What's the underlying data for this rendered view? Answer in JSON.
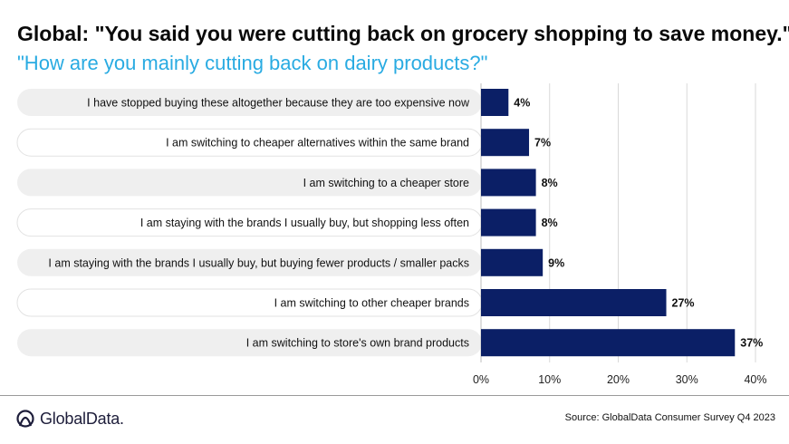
{
  "header": {
    "title": "Global: \"You said you were cutting back on grocery shopping to save money.\"",
    "subtitle": "\"How are you mainly cutting back on dairy products?\""
  },
  "footer": {
    "brand": "GlobalData.",
    "source": "Source: GlobalData Consumer Survey Q4 2023"
  },
  "colors": {
    "bar": "#0b1f66",
    "subtitle": "#29abe2",
    "label_pill": "#efefef",
    "grid": "#d9d9d9"
  },
  "chart_data": {
    "type": "bar",
    "orientation": "horizontal",
    "categories": [
      "I have stopped buying these altogether because they are too expensive now",
      "I am switching to cheaper alternatives within the same brand",
      "I am switching to a cheaper store",
      "I am staying with the brands I usually buy, but shopping less often",
      "I am staying with the brands I usually buy, but buying fewer products / smaller packs",
      "I am switching to other cheaper brands",
      "I am switching to store's own brand products"
    ],
    "values": [
      4,
      7,
      8,
      8,
      9,
      27,
      37
    ],
    "data_labels": [
      "4%",
      "7%",
      "8%",
      "8%",
      "9%",
      "27%",
      "37%"
    ],
    "xlim": [
      0,
      40
    ],
    "x_ticks": [
      0,
      10,
      20,
      30,
      40
    ],
    "x_tick_labels": [
      "0%",
      "10%",
      "20%",
      "30%",
      "40%"
    ],
    "grid": true,
    "legend": "none"
  }
}
